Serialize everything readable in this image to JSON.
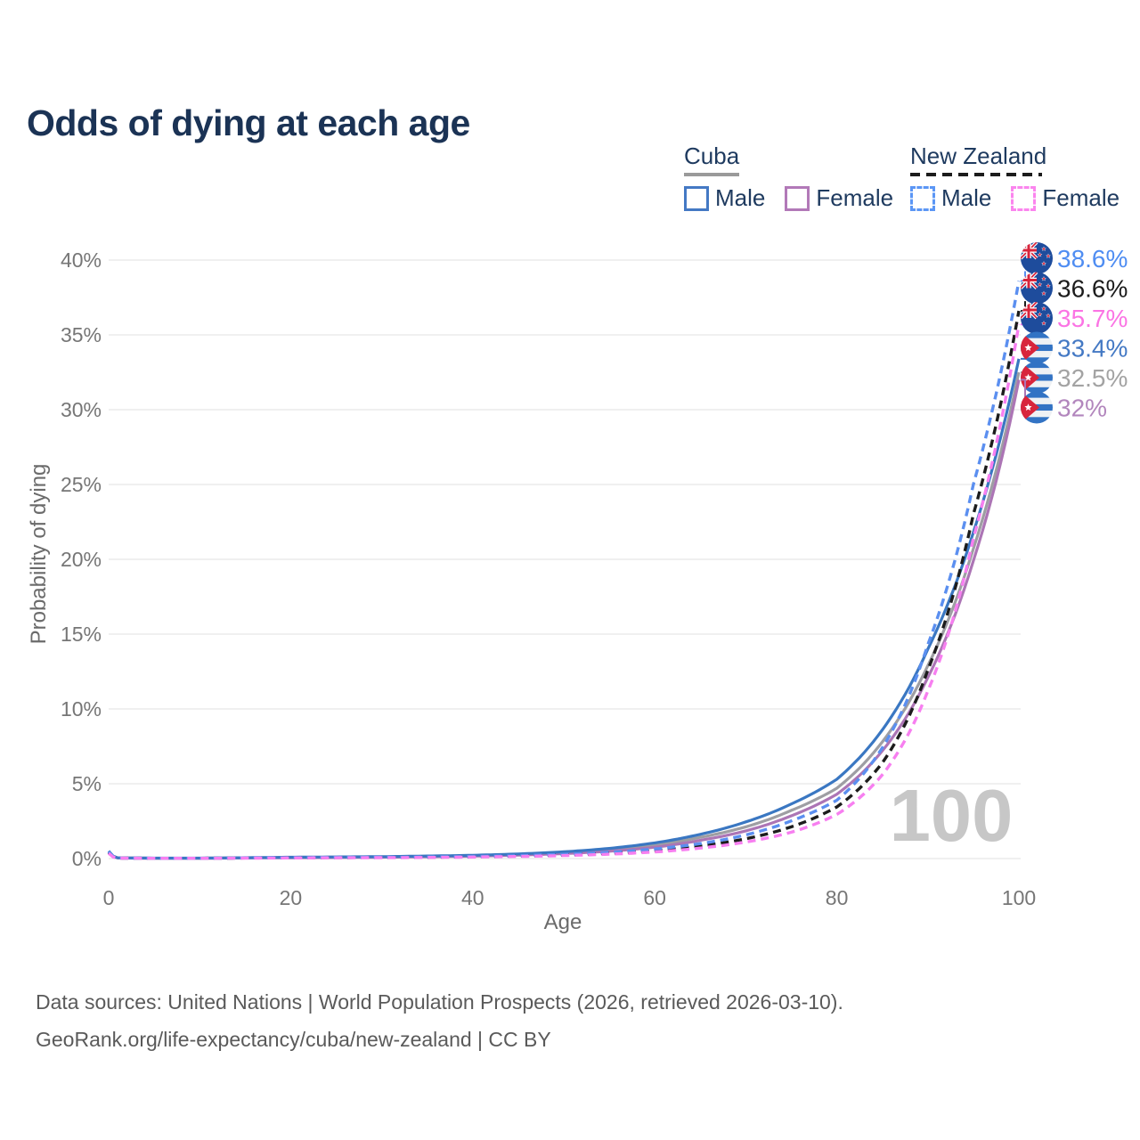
{
  "title": "Odds of dying at each age",
  "legend": {
    "groups": [
      {
        "title": "Cuba",
        "style": "solid",
        "underline_color": "#9a9a9a",
        "items": [
          {
            "label": "Male",
            "color": "#4479c4"
          },
          {
            "label": "Female",
            "color": "#b279b8"
          }
        ]
      },
      {
        "title": "New Zealand",
        "style": "dashed",
        "underline_color": "#1c1c1c",
        "items": [
          {
            "label": "Male",
            "color": "#5b96f5"
          },
          {
            "label": "Female",
            "color": "#fb85ee"
          }
        ]
      }
    ]
  },
  "watermark": "100",
  "colors": {
    "nz_flag_blue": "#1e4c9c",
    "cuba_flag_blue": "#3273c4",
    "flag_red": "#d8253c",
    "grid": "#ebebeb",
    "tick_text": "#767676",
    "title_text": "#1b3355",
    "watermark": "#c7c7c7"
  },
  "footer": {
    "line1": "Data sources: United Nations | World Population Prospects (2026, retrieved 2026-03-10).",
    "line2": "GeoRank.org/life-expectancy/cuba/new-zealand | CC BY"
  },
  "chart_data": {
    "type": "line",
    "title": "Odds of dying at each age",
    "xlabel": "Age",
    "ylabel": "Probability of dying",
    "xlim": [
      0,
      100
    ],
    "ylim": [
      0,
      40
    ],
    "grid": "horizontal",
    "xtick_values": [
      0,
      20,
      40,
      60,
      80,
      100
    ],
    "xtick_labels": [
      "0",
      "20",
      "40",
      "60",
      "80",
      "100"
    ],
    "ytick_values": [
      0,
      5,
      10,
      15,
      20,
      25,
      30,
      35,
      40
    ],
    "ytick_labels": [
      "0%",
      "5%",
      "10%",
      "15%",
      "20%",
      "25%",
      "30%",
      "35%",
      "40%"
    ],
    "ages": [
      0,
      1,
      5,
      10,
      15,
      20,
      25,
      30,
      35,
      40,
      45,
      50,
      55,
      60,
      65,
      70,
      75,
      80,
      85,
      90,
      95,
      100
    ],
    "series": [
      {
        "id": "cuba-total",
        "name": "Cuba Both sexes",
        "country": "Cuba",
        "sex": "both",
        "color": "#9e9ea3",
        "label_color": "#a3a3a3",
        "dashed": false,
        "flag": "cu",
        "end_label": "32.5%",
        "end_value": 32.5,
        "values": [
          0.45,
          0.045,
          0.025,
          0.025,
          0.05,
          0.07,
          0.09,
          0.11,
          0.14,
          0.19,
          0.27,
          0.39,
          0.58,
          0.9,
          1.42,
          2.12,
          3.22,
          4.7,
          7.8,
          12.9,
          20.7,
          32.5
        ]
      },
      {
        "id": "cuba-female",
        "name": "Cuba Female",
        "country": "Cuba",
        "sex": "female",
        "color": "#ac75b5",
        "label_color": "#b286bd",
        "dashed": false,
        "flag": "cu",
        "end_label": "32%",
        "end_value": 32.0,
        "values": [
          0.4,
          0.04,
          0.02,
          0.02,
          0.04,
          0.055,
          0.07,
          0.09,
          0.12,
          0.16,
          0.23,
          0.33,
          0.49,
          0.76,
          1.22,
          1.85,
          2.86,
          4.3,
          7.2,
          12.1,
          19.9,
          32.0
        ]
      },
      {
        "id": "cuba-male",
        "name": "Cuba Male",
        "country": "Cuba",
        "sex": "male",
        "color": "#3a77c2",
        "label_color": "#4479c4",
        "dashed": false,
        "flag": "cu",
        "end_label": "33.4%",
        "end_value": 33.4,
        "values": [
          0.5,
          0.05,
          0.03,
          0.03,
          0.06,
          0.09,
          0.11,
          0.13,
          0.17,
          0.22,
          0.31,
          0.45,
          0.68,
          1.05,
          1.62,
          2.45,
          3.65,
          5.3,
          8.6,
          14.0,
          21.8,
          33.4
        ]
      },
      {
        "id": "nz-total",
        "name": "New Zealand Both sexes",
        "country": "New Zealand",
        "sex": "both",
        "color": "#1c1c1c",
        "label_color": "#1c1c1c",
        "dashed": true,
        "flag": "nz",
        "end_label": "36.6%",
        "end_value": 36.6,
        "values": [
          0.4,
          0.035,
          0.018,
          0.018,
          0.04,
          0.055,
          0.065,
          0.075,
          0.09,
          0.12,
          0.17,
          0.24,
          0.35,
          0.53,
          0.84,
          1.32,
          2.12,
          3.45,
          6.4,
          12.6,
          23.0,
          36.6
        ]
      },
      {
        "id": "nz-male",
        "name": "New Zealand Male",
        "country": "New Zealand",
        "sex": "male",
        "color": "#5b8ff0",
        "label_color": "#4f8df2",
        "dashed": true,
        "flag": "nz",
        "end_label": "38.6%",
        "end_value": 38.6,
        "values": [
          0.45,
          0.04,
          0.02,
          0.02,
          0.05,
          0.07,
          0.08,
          0.09,
          0.11,
          0.14,
          0.2,
          0.28,
          0.42,
          0.64,
          1.0,
          1.58,
          2.52,
          3.9,
          7.4,
          14.3,
          25.0,
          38.6
        ]
      },
      {
        "id": "nz-female",
        "name": "New Zealand Female",
        "country": "New Zealand",
        "sex": "female",
        "color": "#f77ff0",
        "label_color": "#fb74e4",
        "dashed": true,
        "flag": "nz",
        "end_label": "35.7%",
        "end_value": 35.7,
        "values": [
          0.35,
          0.03,
          0.015,
          0.015,
          0.03,
          0.04,
          0.05,
          0.06,
          0.075,
          0.1,
          0.14,
          0.2,
          0.29,
          0.44,
          0.7,
          1.1,
          1.76,
          2.95,
          5.6,
          11.2,
          21.4,
          35.7
        ]
      }
    ]
  }
}
